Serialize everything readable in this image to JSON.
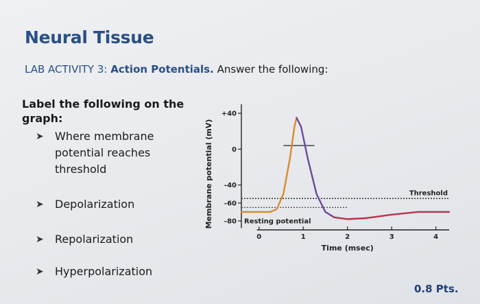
{
  "slide": {
    "title": "Neural Tissue",
    "lab_label": "LAB ACTIVITY 3:",
    "lab_topic": "Action Potentials.",
    "lab_instruction": " Answer the following:",
    "prompt": "Label the following on the graph:",
    "bullets": [
      "Where membrane potential reaches threshold",
      "Depolarization",
      "Repolarization",
      "Hyperpolarization"
    ],
    "points": "0.8 Pts."
  },
  "chart_data": {
    "type": "line",
    "title": "",
    "xlabel": "Time (msec)",
    "ylabel": "Membrane potential (mV)",
    "x_ticks": [
      "0",
      "1",
      "2",
      "3",
      "4"
    ],
    "y_ticks": [
      "+40",
      "0",
      "-40",
      "-60",
      "-80"
    ],
    "xlim": [
      -0.4,
      4.3
    ],
    "ylim": [
      -90,
      50
    ],
    "threshold_label": "Threshold",
    "resting_label": "Resting potential",
    "threshold_value": -55,
    "resting_value": -70,
    "series": [
      {
        "color": "#d98a2b",
        "x": [
          -0.4,
          0.25,
          0.4,
          0.55,
          0.7,
          0.8,
          0.85
        ],
        "y": [
          -70,
          -70,
          -67,
          -50,
          -10,
          25,
          35
        ]
      },
      {
        "color": "#6a4a9a",
        "x": [
          0.85,
          0.95,
          1.1,
          1.3,
          1.5,
          1.7
        ],
        "y": [
          35,
          25,
          -10,
          -50,
          -70,
          -76
        ]
      },
      {
        "color": "#b5334a",
        "x": [
          1.7,
          2.0,
          2.4,
          3.0,
          3.6,
          4.3
        ],
        "y": [
          -76,
          -78,
          -77,
          -73,
          -70,
          -70
        ]
      }
    ]
  }
}
